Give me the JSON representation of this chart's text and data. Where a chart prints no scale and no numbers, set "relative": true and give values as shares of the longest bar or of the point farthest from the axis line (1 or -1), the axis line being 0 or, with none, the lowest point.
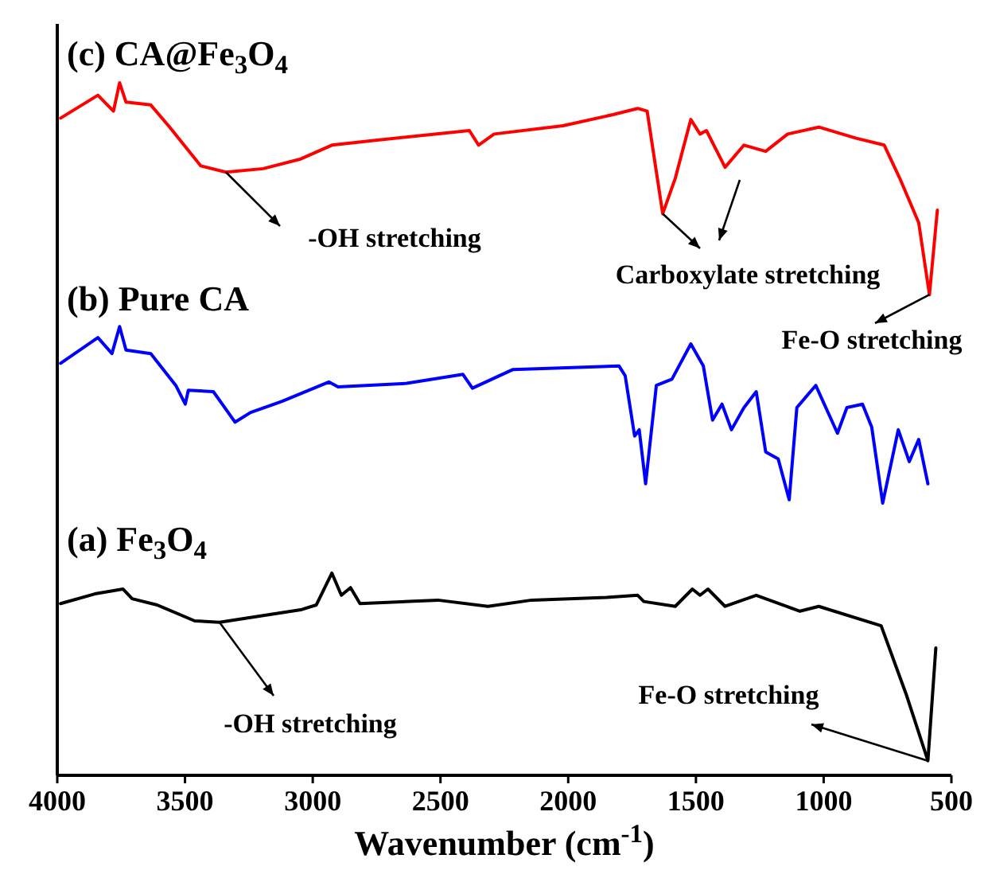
{
  "chart_data": {
    "type": "line",
    "relative": true,
    "xlabel": "Wavenumber (cm$^{-1}$)",
    "xlim": [
      4000,
      500
    ],
    "xticks": [
      4000,
      3500,
      3000,
      2500,
      2000,
      1500,
      1000,
      500
    ],
    "series": [
      {
        "name": "(c) CA@Fe$_{3}$O$_{4}$",
        "color": "#ff0000",
        "x": [
          3987,
          3841,
          3780,
          3756,
          3731,
          3634,
          3560,
          3438,
          3340,
          3194,
          3047,
          2925,
          2754,
          2387,
          2351,
          2290,
          2021,
          1825,
          1728,
          1691,
          1630,
          1581,
          1520,
          1484,
          1459,
          1386,
          1312,
          1227,
          1141,
          1019,
          873,
          763,
          702,
          628,
          586,
          555
        ],
        "values": [
          0.949,
          0.982,
          0.959,
          1.0,
          0.972,
          0.968,
          0.936,
          0.88,
          0.871,
          0.876,
          0.89,
          0.91,
          0.917,
          0.931,
          0.91,
          0.926,
          0.938,
          0.954,
          0.963,
          0.959,
          0.811,
          0.862,
          0.947,
          0.926,
          0.931,
          0.878,
          0.91,
          0.901,
          0.926,
          0.936,
          0.92,
          0.91,
          0.862,
          0.798,
          0.694,
          0.816
        ]
      },
      {
        "name": "(b) Pure CA",
        "color": "#0000ff",
        "x": [
          3987,
          3841,
          3786,
          3756,
          3731,
          3634,
          3536,
          3499,
          3487,
          3389,
          3304,
          3243,
          3120,
          2937,
          2901,
          2632,
          2412,
          2375,
          2216,
          1801,
          1777,
          1740,
          1722,
          1697,
          1655,
          1594,
          1520,
          1471,
          1435,
          1398,
          1361,
          1312,
          1264,
          1227,
          1178,
          1135,
          1105,
          1031,
          946,
          909,
          848,
          812,
          769,
          708,
          665,
          628,
          592
        ],
        "values": [
          0.595,
          0.632,
          0.609,
          0.648,
          0.614,
          0.609,
          0.563,
          0.536,
          0.556,
          0.554,
          0.51,
          0.524,
          0.54,
          0.568,
          0.561,
          0.566,
          0.579,
          0.559,
          0.586,
          0.591,
          0.577,
          0.49,
          0.499,
          0.421,
          0.563,
          0.572,
          0.623,
          0.591,
          0.513,
          0.536,
          0.499,
          0.531,
          0.554,
          0.467,
          0.457,
          0.398,
          0.531,
          0.563,
          0.494,
          0.531,
          0.536,
          0.503,
          0.393,
          0.499,
          0.453,
          0.485,
          0.421
        ]
      },
      {
        "name": "(a) Fe$_{3}$O$_{4}$",
        "color": "#000000",
        "x": [
          3987,
          3853,
          3743,
          3707,
          3609,
          3462,
          3365,
          3047,
          2986,
          2925,
          2888,
          2852,
          2815,
          2510,
          2314,
          2143,
          1850,
          1728,
          1704,
          1581,
          1514,
          1484,
          1453,
          1386,
          1264,
          1093,
          1019,
          775,
          677,
          592,
          561
        ],
        "values": [
          0.248,
          0.262,
          0.269,
          0.255,
          0.246,
          0.223,
          0.221,
          0.239,
          0.246,
          0.292,
          0.26,
          0.271,
          0.248,
          0.253,
          0.244,
          0.253,
          0.257,
          0.26,
          0.251,
          0.244,
          0.269,
          0.26,
          0.269,
          0.244,
          0.26,
          0.237,
          0.244,
          0.216,
          0.117,
          0.021,
          0.184
        ]
      }
    ],
    "annotations": [
      {
        "text": "-OH stretching",
        "x": 3340,
        "y": 0.871
      },
      {
        "text": "Carboxylate stretching",
        "x": 1630,
        "y": 0.811
      },
      {
        "text": "Fe-O stretching",
        "x": 586,
        "y": 0.694
      },
      {
        "text": "-OH stretching",
        "x": 3365,
        "y": 0.221
      },
      {
        "text": "Fe-O stretching",
        "x": 592,
        "y": 0.021
      }
    ]
  }
}
